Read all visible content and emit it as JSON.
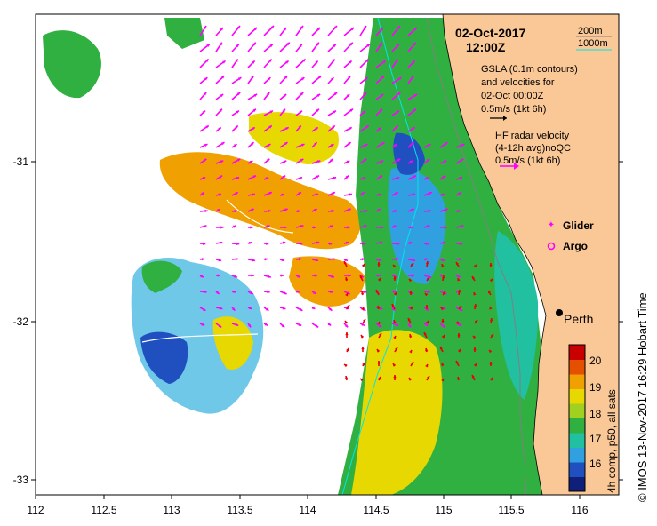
{
  "map": {
    "date_line": "02-Oct-2017",
    "time_line": "12:00Z",
    "lon_ticks": [
      "112",
      "112.5",
      "113",
      "113.5",
      "114",
      "114.5",
      "115",
      "115.5",
      "116"
    ],
    "lat_ticks": [
      "-31",
      "-32",
      "-33"
    ],
    "depth_legend": {
      "line1": "200m",
      "line2": "1000m",
      "line1_color": "#808080",
      "line2_color": "#00e5ee"
    },
    "gsla": {
      "line1": "GSLA (0.1m contours)",
      "line2": "and velocities for",
      "line3": "02-Oct 00:00Z",
      "line4": "0.5m/s (1kt 6h)"
    },
    "hf_radar": {
      "line1": "HF radar velocity",
      "line2": "(4-12h avg)noQC",
      "line3": "0.5m/s (1kt 6h)",
      "color": "#ff00ff"
    },
    "markers": {
      "glider_label": "Glider",
      "argo_label": "Argo",
      "color": "#ff00ff"
    },
    "city_label": "Perth",
    "colorbar": {
      "ticks": [
        "20",
        "19",
        "18",
        "17",
        "16"
      ],
      "title": "4h comp, p50, all sats",
      "colors": [
        "#c80000",
        "#e45000",
        "#f0a000",
        "#e6d800",
        "#a0d020",
        "#30b040",
        "#20c0a0",
        "#30a0e0",
        "#2050c0",
        "#10207a"
      ]
    },
    "credit": "© IMOS 13-Nov-2017 16:29 Hobart Time",
    "land_color": "#fac896"
  }
}
